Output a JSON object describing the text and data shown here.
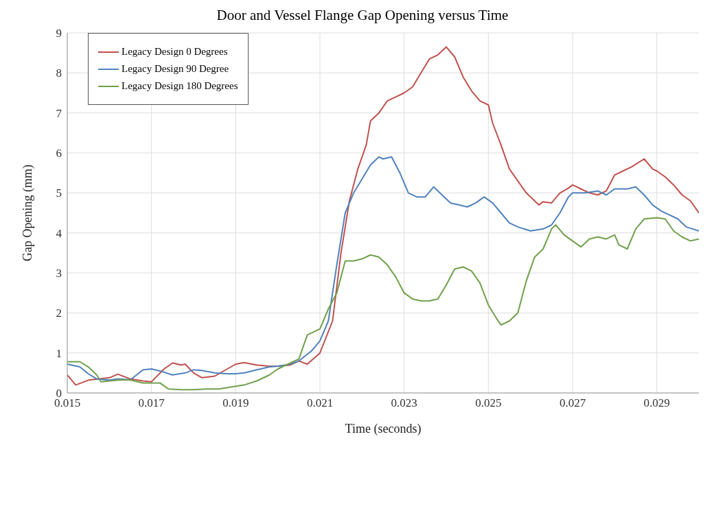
{
  "chart_data": {
    "type": "line",
    "title": "Door and Vessel Flange Gap Opening versus Time",
    "xlabel": "Time (seconds)",
    "ylabel": "Gap Opening (mm)",
    "xlim": [
      0.015,
      0.03
    ],
    "xticks": [
      0.015,
      0.017,
      0.019,
      0.021,
      0.023,
      0.025,
      0.027,
      0.029
    ],
    "ylim": [
      0,
      9
    ],
    "yticks": [
      0,
      1,
      2,
      3,
      4,
      5,
      6,
      7,
      8,
      9
    ],
    "grid": true,
    "legend": "top left",
    "marker": "none",
    "line_style": "solid",
    "series": [
      {
        "name": "Legacy Design 0 Degrees",
        "color": "#c0504d",
        "x": [
          0.015,
          0.0152,
          0.0155,
          0.016,
          0.0162,
          0.0165,
          0.0168,
          0.017,
          0.0173,
          0.0175,
          0.0177,
          0.0178,
          0.018,
          0.0182,
          0.0185,
          0.0188,
          0.019,
          0.0192,
          0.0195,
          0.0198,
          0.02,
          0.0203,
          0.0205,
          0.0207,
          0.021,
          0.0213,
          0.0215,
          0.0217,
          0.0219,
          0.0221,
          0.0222,
          0.0224,
          0.0226,
          0.0228,
          0.023,
          0.0232,
          0.0234,
          0.0236,
          0.0238,
          0.024,
          0.0242,
          0.0244,
          0.0246,
          0.0248,
          0.025,
          0.0251,
          0.0253,
          0.0255,
          0.0257,
          0.0259,
          0.0261,
          0.0262,
          0.0263,
          0.0265,
          0.0267,
          0.0269,
          0.027,
          0.0272,
          0.0274,
          0.0276,
          0.0278,
          0.028,
          0.0282,
          0.0284,
          0.0287,
          0.0289,
          0.029,
          0.0292,
          0.0294,
          0.0296,
          0.0298,
          0.03
        ],
        "values": [
          0.45,
          0.2,
          0.32,
          0.38,
          0.47,
          0.35,
          0.3,
          0.28,
          0.6,
          0.75,
          0.7,
          0.72,
          0.5,
          0.38,
          0.42,
          0.6,
          0.72,
          0.76,
          0.7,
          0.67,
          0.67,
          0.7,
          0.8,
          0.72,
          1.0,
          1.8,
          3.5,
          4.8,
          5.6,
          6.2,
          6.8,
          7.0,
          7.3,
          7.4,
          7.5,
          7.65,
          8.0,
          8.35,
          8.45,
          8.65,
          8.4,
          7.9,
          7.55,
          7.3,
          7.2,
          6.75,
          6.2,
          5.6,
          5.3,
          5.0,
          4.8,
          4.7,
          4.78,
          4.75,
          5.0,
          5.12,
          5.2,
          5.1,
          5.0,
          4.95,
          5.05,
          5.45,
          5.55,
          5.65,
          5.85,
          5.6,
          5.55,
          5.4,
          5.2,
          4.95,
          4.8,
          4.5
        ]
      },
      {
        "name": "Legacy Design 90 Degree",
        "color": "#4f81bd",
        "x": [
          0.015,
          0.0153,
          0.0155,
          0.0157,
          0.016,
          0.0162,
          0.0165,
          0.0168,
          0.017,
          0.0172,
          0.0175,
          0.0178,
          0.018,
          0.0182,
          0.0185,
          0.0188,
          0.019,
          0.0192,
          0.0195,
          0.0198,
          0.02,
          0.0203,
          0.0205,
          0.0208,
          0.021,
          0.0212,
          0.0214,
          0.0216,
          0.0218,
          0.022,
          0.0222,
          0.0224,
          0.0225,
          0.0227,
          0.0229,
          0.0231,
          0.0233,
          0.0235,
          0.0237,
          0.0239,
          0.0241,
          0.0243,
          0.0245,
          0.0247,
          0.0249,
          0.0251,
          0.0253,
          0.0255,
          0.0257,
          0.026,
          0.0263,
          0.0265,
          0.0267,
          0.0269,
          0.027,
          0.0273,
          0.0276,
          0.0278,
          0.028,
          0.0283,
          0.0285,
          0.0287,
          0.0289,
          0.0291,
          0.0293,
          0.0295,
          0.0297,
          0.03
        ],
        "values": [
          0.72,
          0.65,
          0.48,
          0.35,
          0.32,
          0.35,
          0.33,
          0.58,
          0.6,
          0.55,
          0.45,
          0.5,
          0.58,
          0.56,
          0.5,
          0.48,
          0.48,
          0.5,
          0.58,
          0.65,
          0.67,
          0.72,
          0.8,
          1.05,
          1.3,
          1.8,
          3.2,
          4.5,
          5.0,
          5.35,
          5.7,
          5.9,
          5.85,
          5.9,
          5.5,
          5.0,
          4.9,
          4.9,
          5.15,
          4.95,
          4.75,
          4.7,
          4.65,
          4.75,
          4.9,
          4.75,
          4.5,
          4.25,
          4.15,
          4.05,
          4.1,
          4.2,
          4.5,
          4.9,
          5.0,
          5.0,
          5.05,
          4.95,
          5.1,
          5.1,
          5.15,
          4.95,
          4.7,
          4.55,
          4.45,
          4.35,
          4.15,
          4.05
        ]
      },
      {
        "name": "Legacy Design 180 Degrees",
        "color": "#70a04a",
        "x": [
          0.015,
          0.0153,
          0.0155,
          0.0157,
          0.0158,
          0.016,
          0.0163,
          0.0165,
          0.0168,
          0.017,
          0.0172,
          0.0174,
          0.0177,
          0.018,
          0.0183,
          0.0186,
          0.0189,
          0.0192,
          0.0195,
          0.0198,
          0.02,
          0.0203,
          0.0205,
          0.0207,
          0.0209,
          0.021,
          0.0212,
          0.0214,
          0.0216,
          0.0218,
          0.022,
          0.0222,
          0.0224,
          0.0226,
          0.0228,
          0.023,
          0.0232,
          0.0234,
          0.0236,
          0.0238,
          0.024,
          0.0242,
          0.0244,
          0.0246,
          0.0248,
          0.025,
          0.0252,
          0.0253,
          0.0255,
          0.0257,
          0.0259,
          0.0261,
          0.0263,
          0.0265,
          0.0266,
          0.0268,
          0.027,
          0.0272,
          0.0274,
          0.0276,
          0.0278,
          0.028,
          0.0281,
          0.0283,
          0.0285,
          0.0287,
          0.029,
          0.0292,
          0.0294,
          0.0296,
          0.0298,
          0.03
        ],
        "values": [
          0.78,
          0.78,
          0.65,
          0.45,
          0.28,
          0.3,
          0.33,
          0.32,
          0.25,
          0.25,
          0.25,
          0.1,
          0.08,
          0.08,
          0.1,
          0.1,
          0.15,
          0.2,
          0.3,
          0.45,
          0.6,
          0.75,
          0.85,
          1.45,
          1.55,
          1.6,
          2.1,
          2.5,
          3.3,
          3.3,
          3.35,
          3.45,
          3.4,
          3.2,
          2.9,
          2.5,
          2.35,
          2.3,
          2.3,
          2.35,
          2.7,
          3.1,
          3.15,
          3.05,
          2.75,
          2.2,
          1.85,
          1.7,
          1.8,
          2.0,
          2.8,
          3.4,
          3.6,
          4.1,
          4.2,
          3.95,
          3.8,
          3.65,
          3.85,
          3.9,
          3.85,
          3.95,
          3.7,
          3.6,
          4.1,
          4.35,
          4.38,
          4.35,
          4.05,
          3.9,
          3.8,
          3.85
        ]
      }
    ]
  }
}
